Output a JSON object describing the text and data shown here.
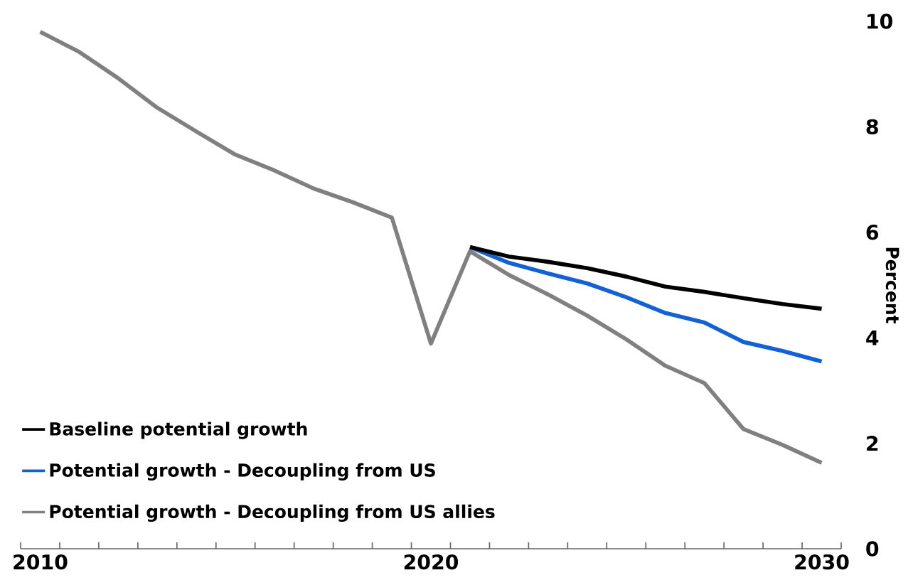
{
  "chart_data": {
    "type": "line",
    "ylabel": "Percent",
    "xlim": [
      2009.5,
      2030.5
    ],
    "xticks": [
      {
        "value": 2009.5,
        "label": null
      },
      {
        "value": 2010,
        "label": "2010"
      },
      {
        "value": 2010.5,
        "label": null
      },
      {
        "value": 2011.5,
        "label": null
      },
      {
        "value": 2012.5,
        "label": null
      },
      {
        "value": 2013.5,
        "label": null
      },
      {
        "value": 2014.5,
        "label": null
      },
      {
        "value": 2015.5,
        "label": null
      },
      {
        "value": 2016.5,
        "label": null
      },
      {
        "value": 2017.5,
        "label": null
      },
      {
        "value": 2018.5,
        "label": null
      },
      {
        "value": 2019.5,
        "label": null
      },
      {
        "value": 2020,
        "label": "2020"
      },
      {
        "value": 2020.5,
        "label": null
      },
      {
        "value": 2021.5,
        "label": null
      },
      {
        "value": 2022.5,
        "label": null
      },
      {
        "value": 2023.5,
        "label": null
      },
      {
        "value": 2024.5,
        "label": null
      },
      {
        "value": 2025.5,
        "label": null
      },
      {
        "value": 2026.5,
        "label": null
      },
      {
        "value": 2027.5,
        "label": null
      },
      {
        "value": 2028.5,
        "label": null
      },
      {
        "value": 2029.5,
        "label": null
      },
      {
        "value": 2030,
        "label": "2030"
      },
      {
        "value": 2030.5,
        "label": null
      }
    ],
    "ylim": [
      0,
      10
    ],
    "yticks": [
      0,
      2,
      4,
      6,
      8,
      10
    ],
    "legend": "bottom left",
    "marker": "none",
    "line_style": "solid",
    "series": [
      {
        "name": "Baseline potential growth",
        "color": "#000000",
        "x": [
          2021,
          2022,
          2023,
          2024,
          2025,
          2026,
          2027,
          2028,
          2029,
          2030
        ],
        "values": [
          5.72,
          5.54,
          5.44,
          5.32,
          5.16,
          4.97,
          4.87,
          4.75,
          4.64,
          4.55
        ]
      },
      {
        "name": "Potential growth - Decoupling from US",
        "color": "#1262d6",
        "x": [
          2021,
          2022,
          2023,
          2024,
          2025,
          2026,
          2027,
          2028,
          2029,
          2030
        ],
        "values": [
          5.72,
          5.42,
          5.22,
          5.03,
          4.77,
          4.47,
          4.29,
          3.92,
          3.75,
          3.55
        ]
      },
      {
        "name": "Potential growth - Decoupling from US allies",
        "color": "#808080",
        "x": [
          2010,
          2011,
          2012,
          2013,
          2014,
          2015,
          2016,
          2017,
          2018,
          2019,
          2020,
          2021,
          2022,
          2023,
          2024,
          2025,
          2026,
          2027,
          2028,
          2029,
          2030
        ],
        "values": [
          9.8,
          9.42,
          8.92,
          8.36,
          7.91,
          7.47,
          7.17,
          6.83,
          6.57,
          6.28,
          3.89,
          5.64,
          5.19,
          4.82,
          4.42,
          3.97,
          3.47,
          3.14,
          2.27,
          1.97,
          1.63
        ]
      }
    ]
  }
}
